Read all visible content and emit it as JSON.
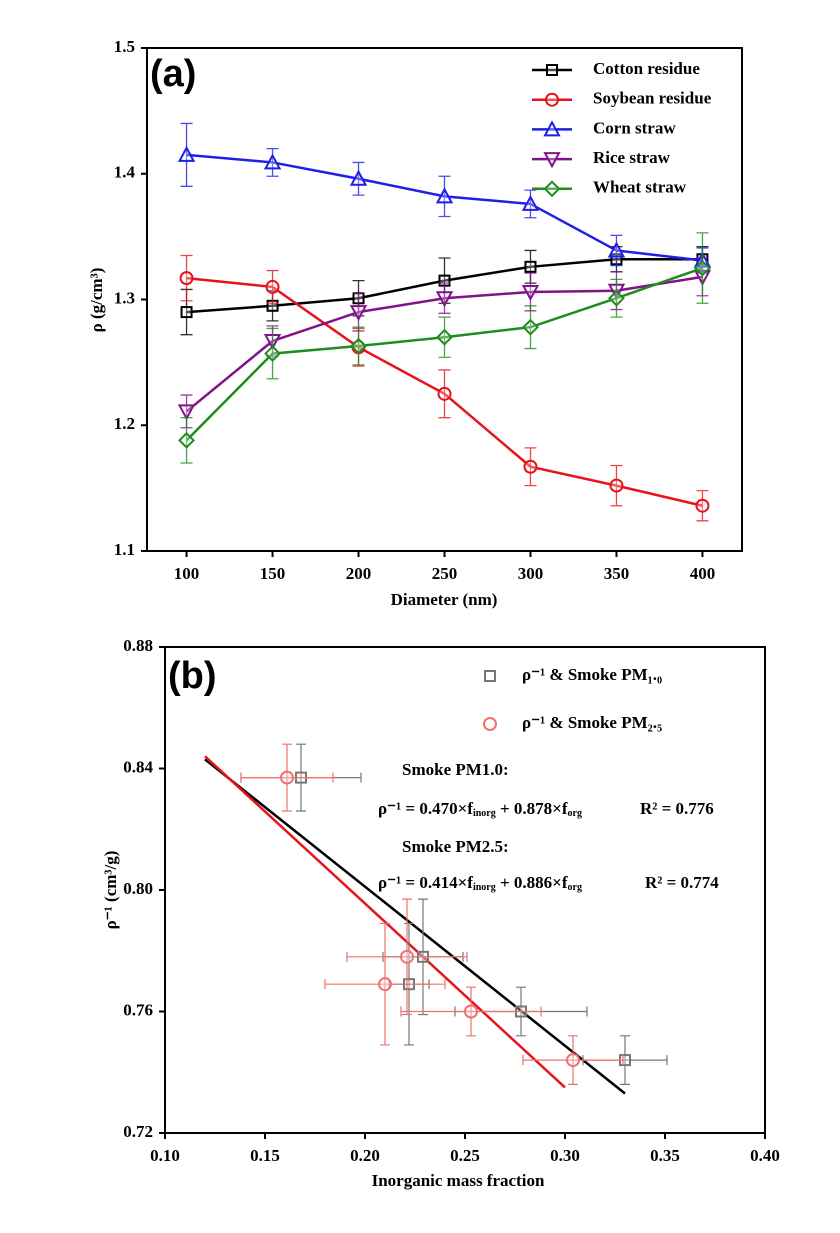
{
  "chart_data": [
    {
      "type": "line",
      "panel_label": "(a)",
      "x_label": "Diameter (nm)",
      "y_label": "ρ (g/cm³)",
      "x": [
        100,
        150,
        200,
        250,
        300,
        350,
        400
      ],
      "xlim": [
        77,
        423
      ],
      "xticks": [
        100,
        150,
        200,
        250,
        300,
        350,
        400
      ],
      "ylim": [
        1.1,
        1.5
      ],
      "yticks": [
        1.1,
        1.2,
        1.3,
        1.4,
        1.5
      ],
      "series": [
        {
          "name": "Cotton residue",
          "color": "#000000",
          "marker": "square",
          "values": [
            1.29,
            1.295,
            1.301,
            1.315,
            1.326,
            1.332,
            1.332
          ],
          "errors": [
            0.018,
            0.012,
            0.014,
            0.018,
            0.013,
            0.01,
            0.01
          ]
        },
        {
          "name": "Soybean residue",
          "color": "#e8141c",
          "marker": "circle",
          "values": [
            1.317,
            1.31,
            1.262,
            1.225,
            1.167,
            1.152,
            1.136
          ],
          "errors": [
            0.018,
            0.013,
            0.015,
            0.019,
            0.015,
            0.016,
            0.012
          ]
        },
        {
          "name": "Corn straw",
          "color": "#1f1fe6",
          "marker": "triangle-up",
          "values": [
            1.415,
            1.409,
            1.396,
            1.382,
            1.376,
            1.339,
            1.331
          ],
          "errors": [
            0.025,
            0.011,
            0.013,
            0.016,
            0.011,
            0.012,
            0.01
          ]
        },
        {
          "name": "Rice straw",
          "color": "#80128a",
          "marker": "triangle-down",
          "values": [
            1.211,
            1.267,
            1.29,
            1.301,
            1.306,
            1.307,
            1.318
          ],
          "errors": [
            0.013,
            0.012,
            0.015,
            0.012,
            0.015,
            0.015,
            0.015
          ]
        },
        {
          "name": "Wheat straw",
          "color": "#1e8c1e",
          "marker": "diamond",
          "values": [
            1.188,
            1.257,
            1.263,
            1.27,
            1.278,
            1.301,
            1.325
          ],
          "errors": [
            0.018,
            0.02,
            0.015,
            0.016,
            0.017,
            0.015,
            0.028
          ]
        }
      ]
    },
    {
      "type": "scatter",
      "panel_label": "(b)",
      "x_label": "Inorganic mass fraction",
      "y_label": "ρ⁻¹ (cm³/g)",
      "xlim": [
        0.1,
        0.4
      ],
      "xticks": [
        {
          "value": 0.1,
          "label": "0.10"
        },
        0.15,
        {
          "value": 0.2,
          "label": "0.20"
        },
        0.25,
        {
          "value": 0.3,
          "label": "0.30"
        },
        0.35,
        {
          "value": 0.4,
          "label": "0.40"
        }
      ],
      "ylim": [
        0.72,
        0.88
      ],
      "yticks": [
        0.72,
        0.76,
        {
          "value": 0.8,
          "label": "0.80"
        },
        0.84,
        0.88
      ],
      "series": [
        {
          "name": "ρ⁻¹ & Smoke PM₁.₀",
          "color": "#777777",
          "marker": "square",
          "x": [
            0.168,
            0.222,
            0.229,
            0.278,
            0.33
          ],
          "values": [
            0.837,
            0.769,
            0.778,
            0.76,
            0.744
          ],
          "xerr": [
            0.03,
            0.01,
            0.02,
            0.033,
            0.021
          ],
          "yerr": [
            0.011,
            0.02,
            0.019,
            0.008,
            0.008
          ]
        },
        {
          "name": "ρ⁻¹ & Smoke PM₂.₅",
          "color": "#f07070",
          "marker": "circle",
          "x": [
            0.161,
            0.21,
            0.221,
            0.253,
            0.304
          ],
          "values": [
            0.837,
            0.769,
            0.778,
            0.76,
            0.744
          ],
          "xerr": [
            0.023,
            0.03,
            0.03,
            0.035,
            0.025
          ],
          "yerr": [
            0.011,
            0.02,
            0.019,
            0.008,
            0.008
          ]
        }
      ],
      "fits": [
        {
          "color": "#000000",
          "x": [
            0.12,
            0.33
          ],
          "values": [
            0.843,
            0.733
          ]
        },
        {
          "color": "#e8141c",
          "x": [
            0.12,
            0.3
          ],
          "values": [
            0.844,
            0.735
          ]
        }
      ],
      "annotations": [
        {
          "label": "Smoke PM1.0:",
          "lhs": "ρ⁻¹ = 0.470×f",
          "sub1": "inorg",
          "mid": " + 0.878×f",
          "sub2": "org",
          "r2": "R² = 0.776"
        },
        {
          "label": "Smoke PM2.5:",
          "lhs": "ρ⁻¹ = 0.414×f",
          "sub1": "inorg",
          "mid": " + 0.886×f",
          "sub2": "org",
          "r2": "R² = 0.774"
        }
      ]
    }
  ]
}
